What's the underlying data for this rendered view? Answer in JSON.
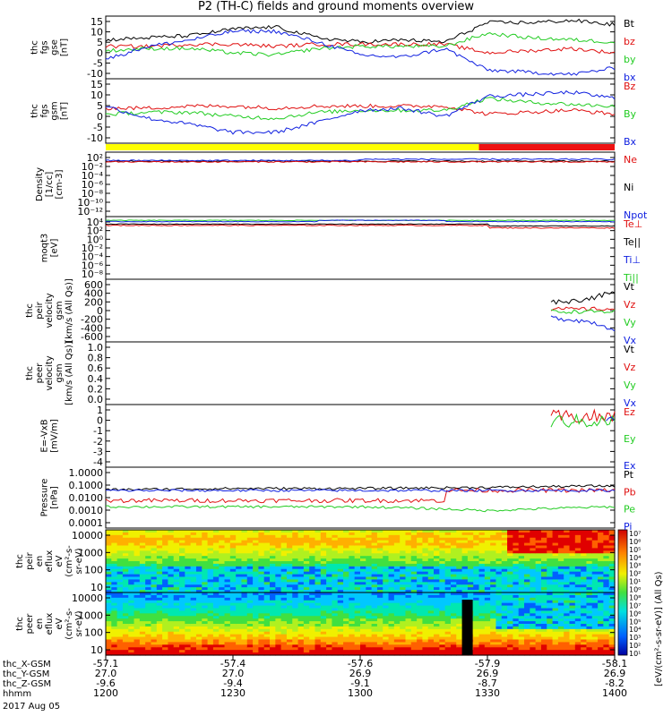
{
  "title": "P2 (TH-C) fields and ground moments overview",
  "date": "2017 Aug 05",
  "colors": {
    "black": "#000000",
    "red": "#e01010",
    "green": "#22cc22",
    "blue": "#1020e0",
    "yellow": "#ffff00",
    "barred": "#ee1111"
  },
  "panels": [
    {
      "id": "fgs-gse",
      "ylabel": [
        "thc",
        "fgs",
        "gse",
        "[nT]"
      ],
      "yticks": [
        "15",
        "10",
        "5",
        "0",
        "-5",
        "-10"
      ],
      "ylim": [
        -13,
        16
      ],
      "legend": [
        {
          "label": "Bt",
          "color": "black"
        },
        {
          "label": "bz",
          "color": "red"
        },
        {
          "label": "by",
          "color": "green"
        },
        {
          "label": "bx",
          "color": "blue"
        }
      ]
    },
    {
      "id": "fgs-gsm",
      "ylabel": [
        "thc",
        "fgs",
        "gsm",
        "[nT]"
      ],
      "yticks": [
        "15",
        "10",
        "5",
        "0",
        "-5",
        "-10"
      ],
      "ylim": [
        -13,
        16
      ],
      "legend": [
        {
          "label": "Bz",
          "color": "red"
        },
        {
          "label": "By",
          "color": "green"
        },
        {
          "label": "Bx",
          "color": "blue"
        }
      ]
    },
    {
      "id": "density",
      "ylabel": [
        "Density",
        "[1/cc]",
        "[cm-3]"
      ],
      "yticks": [
        "10²",
        "10⁻²",
        "10⁻⁴",
        "10⁻⁶",
        "10⁻⁸",
        "10⁻¹⁰",
        "10⁻¹²"
      ],
      "legend": [
        {
          "label": "Ne",
          "color": "red"
        },
        {
          "label": "Ni",
          "color": "black"
        },
        {
          "label": "Npot",
          "color": "blue"
        }
      ]
    },
    {
      "id": "temperature",
      "ylabel": [
        "moqt3",
        "[eV]"
      ],
      "yticks": [
        "10⁴",
        "10²",
        "10⁰",
        "10⁻²",
        "10⁻⁴",
        "10⁻⁶",
        "10⁻⁸"
      ],
      "legend": [
        {
          "label": "Te⊥",
          "color": "red"
        },
        {
          "label": "Te||",
          "color": "black"
        },
        {
          "label": "Ti⊥",
          "color": "blue"
        },
        {
          "label": "Ti||",
          "color": "green"
        }
      ]
    },
    {
      "id": "peir-velocity",
      "ylabel": [
        "thc",
        "peir",
        "velocity",
        "gsm",
        "[km/s (All Qs)]"
      ],
      "yticks": [
        "600",
        "400",
        "200",
        "0",
        "-200",
        "-400",
        "-600"
      ],
      "ylim": [
        -600,
        600
      ],
      "legend": [
        {
          "label": "Vt",
          "color": "black"
        },
        {
          "label": "Vz",
          "color": "red"
        },
        {
          "label": "Vy",
          "color": "green"
        },
        {
          "label": "Vx",
          "color": "blue"
        }
      ]
    },
    {
      "id": "peer-velocity",
      "ylabel": [
        "thc",
        "peer",
        "velocity",
        "gsm",
        "[km/s (All Qs)]"
      ],
      "yticks": [
        "1.0",
        "0.8",
        "0.6",
        "0.4",
        "0.2",
        "0.0"
      ],
      "ylim": [
        0,
        1
      ],
      "legend": [
        {
          "label": "Vt",
          "color": "black"
        },
        {
          "label": "Vz",
          "color": "red"
        },
        {
          "label": "Vy",
          "color": "green"
        },
        {
          "label": "Vx",
          "color": "blue"
        }
      ]
    },
    {
      "id": "efield",
      "ylabel": [
        "E=-VxB",
        "[mV/m]"
      ],
      "yticks": [
        "1",
        "0",
        "-1",
        "-2",
        "-3",
        "-4"
      ],
      "ylim": [
        -4.3,
        1.3
      ],
      "legend": [
        {
          "label": "Ez",
          "color": "red"
        },
        {
          "label": "Ey",
          "color": "green"
        },
        {
          "label": "Ex",
          "color": "blue"
        }
      ]
    },
    {
      "id": "pressure",
      "ylabel": [
        "Pressure",
        "[nPa]"
      ],
      "yticks": [
        "1.0000",
        "0.1000",
        "0.0100",
        "0.0010",
        "0.0001"
      ],
      "legend": [
        {
          "label": "Pt",
          "color": "black"
        },
        {
          "label": "Pb",
          "color": "red"
        },
        {
          "label": "Pe",
          "color": "green"
        },
        {
          "label": "Pi",
          "color": "blue"
        }
      ]
    },
    {
      "id": "peir-spec",
      "ylabel": [
        "thc",
        "peir",
        "en",
        "eflux",
        "eV",
        "(cm²-s-",
        "sr-eV)"
      ],
      "yticks": [
        "10000",
        "1000",
        "100",
        "10"
      ]
    },
    {
      "id": "peer-spec",
      "ylabel": [
        "thc",
        "peer",
        "en",
        "eflux",
        "eV",
        "(cm²-s-",
        "sr-eV)"
      ],
      "yticks": [
        "10000",
        "1000",
        "100",
        "10"
      ]
    }
  ],
  "colorbar": {
    "label": "[eV/(cm²-s-sr-eV)] (All Qs)",
    "ticks": [
      "10⁷",
      "10⁶",
      "10⁵",
      "10⁴",
      "10³",
      "10²",
      "10¹",
      "10⁰",
      "10⁸",
      "10⁷",
      "10⁶",
      "10⁵",
      "10⁴",
      "10³",
      "10²",
      "10¹"
    ]
  },
  "xaxis": {
    "row_labels": [
      "thc_X-GSM",
      "thc_Y-GSM",
      "thc_Z-GSM",
      "hhmm"
    ],
    "columns": [
      {
        "values": [
          "-57.1",
          "27.0",
          "-9.6",
          "1200"
        ]
      },
      {
        "values": [
          "-57.4",
          "27.0",
          "-9.4",
          "1230"
        ]
      },
      {
        "values": [
          "-57.6",
          "26.9",
          "-9.1",
          "1300"
        ]
      },
      {
        "values": [
          "-57.9",
          "26.9",
          "-8.7",
          "1330"
        ]
      },
      {
        "values": [
          "-58.1",
          "26.9",
          "-8.2",
          "1400"
        ]
      }
    ]
  },
  "chart_data": {
    "type": "line",
    "x_unit": "hhmm",
    "x_range": [
      "1200",
      "1400"
    ],
    "x_ticks": [
      "1200",
      "1230",
      "1300",
      "1330",
      "1400"
    ],
    "series": [
      {
        "panel": "fgs-gse",
        "name": "Bt",
        "x": [
          1200,
          1210,
          1220,
          1230,
          1240,
          1250,
          1300,
          1310,
          1320,
          1330,
          1340,
          1350,
          1400
        ],
        "values": [
          5,
          6,
          7,
          10,
          11,
          6,
          4,
          5,
          4,
          13,
          13,
          14,
          12
        ]
      },
      {
        "panel": "fgs-gse",
        "name": "bz",
        "x": [
          1200,
          1210,
          1220,
          1230,
          1240,
          1250,
          1300,
          1310,
          1320,
          1330,
          1340,
          1350,
          1400
        ],
        "values": [
          2,
          2,
          3,
          3,
          2,
          3,
          3,
          3,
          3,
          -1,
          0,
          1,
          -1
        ]
      },
      {
        "panel": "fgs-gse",
        "name": "by",
        "x": [
          1200,
          1210,
          1220,
          1230,
          1240,
          1250,
          1300,
          1310,
          1320,
          1330,
          1340,
          1350,
          1400
        ],
        "values": [
          0,
          1,
          1,
          -1,
          -2,
          1,
          2,
          2,
          2,
          8,
          6,
          5,
          4
        ]
      },
      {
        "panel": "fgs-gse",
        "name": "bx",
        "x": [
          1200,
          1210,
          1220,
          1230,
          1240,
          1250,
          1300,
          1310,
          1320,
          1330,
          1340,
          1350,
          1400
        ],
        "values": [
          -4,
          2,
          5,
          9,
          9,
          4,
          -2,
          -3,
          1,
          -9,
          -10,
          -11,
          -8
        ]
      },
      {
        "panel": "peir-velocity",
        "name": "Vt",
        "x": [
          1345,
          1350,
          1355,
          1400
        ],
        "values": [
          170,
          180,
          250,
          350
        ]
      },
      {
        "panel": "peir-velocity",
        "name": "Vx",
        "x": [
          1345,
          1350,
          1355,
          1400
        ],
        "values": [
          -140,
          -170,
          -230,
          -360
        ]
      },
      {
        "panel": "pressure",
        "name": "Pt",
        "x": [
          1200,
          1230,
          1300,
          1330,
          1400
        ],
        "values": [
          0.04,
          0.05,
          0.05,
          0.06,
          0.08
        ]
      },
      {
        "panel": "pressure",
        "name": "Pe",
        "x": [
          1200,
          1230,
          1300,
          1330,
          1400
        ],
        "values": [
          0.002,
          0.002,
          0.002,
          0.001,
          0.002
        ]
      }
    ]
  }
}
